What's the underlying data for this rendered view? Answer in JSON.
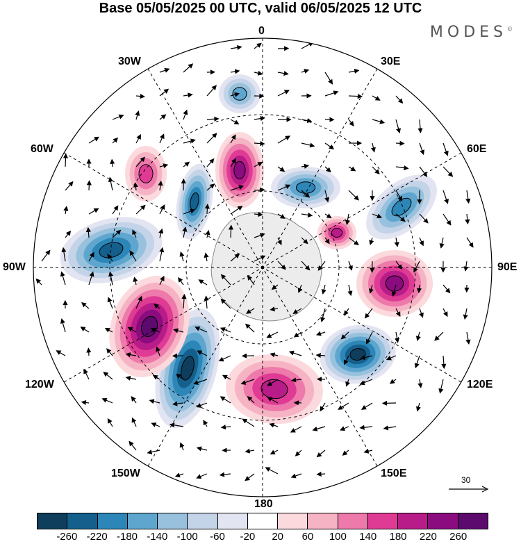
{
  "title": "Base 05/05/2025 00 UTC, valid 06/05/2025 12 UTC",
  "brand": "MODES",
  "brand_mark": "©",
  "longitude_labels": {
    "top": "0",
    "top_right": "30E",
    "right_upper": "60E",
    "right": "90E",
    "right_lower": "120E",
    "bottom_right": "150E",
    "bottom": "180",
    "bottom_left": "150W",
    "left_lower": "120W",
    "left": "90W",
    "left_upper": "60W",
    "top_left": "30W"
  },
  "reference_vector": {
    "label": "30"
  },
  "colorbar": {
    "ticks": [
      "-260",
      "-220",
      "-180",
      "-140",
      "-100",
      "-60",
      "-20",
      "20",
      "60",
      "100",
      "140",
      "180",
      "220",
      "260"
    ],
    "colors": [
      "#0f3d5c",
      "#155f8c",
      "#2c86b8",
      "#5fa6cf",
      "#98c1dd",
      "#c4d4e8",
      "#e3e4f1",
      "#ffffff",
      "#fbd9dd",
      "#f6b3c4",
      "#ee79ab",
      "#df3b94",
      "#b81c88",
      "#8a0c7e",
      "#5c0a6e"
    ]
  },
  "anomaly_blobs": [
    {
      "name": "pink-east",
      "level": 220
    },
    {
      "name": "blue-northeast",
      "level": -180
    },
    {
      "name": "blue-southeast",
      "level": -260
    },
    {
      "name": "pink-south",
      "level": 180
    },
    {
      "name": "blue-southwest",
      "level": -260
    },
    {
      "name": "pink-southwest",
      "level": 260
    },
    {
      "name": "blue-west",
      "level": -220
    },
    {
      "name": "blue-northwest",
      "level": -220
    },
    {
      "name": "pink-north",
      "level": 220
    },
    {
      "name": "pink-northwest-small",
      "level": 140
    },
    {
      "name": "blue-north-small",
      "level": -140
    },
    {
      "name": "blue-north-center",
      "level": -180
    },
    {
      "name": "pink-northeast-small",
      "level": 180
    }
  ]
}
